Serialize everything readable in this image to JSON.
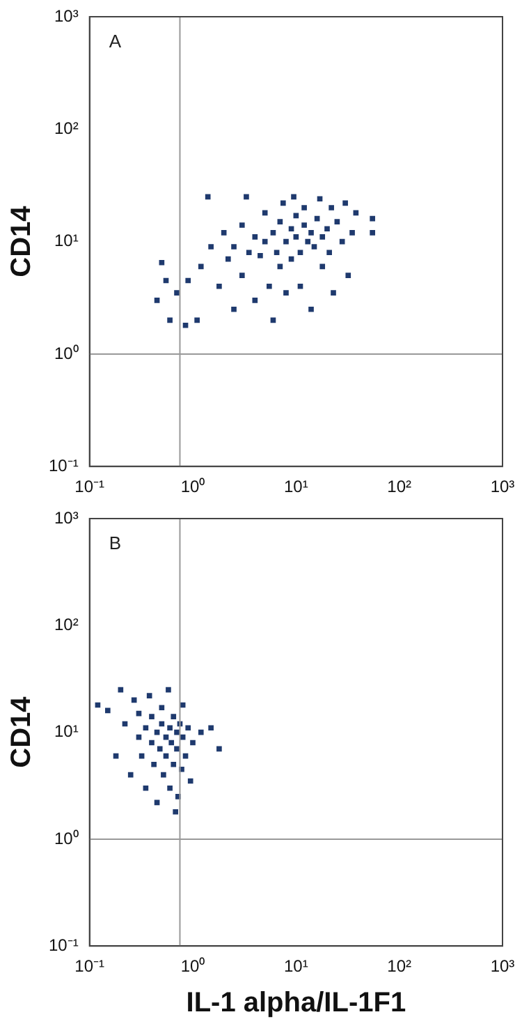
{
  "chart_data": [
    {
      "type": "scatter",
      "ylabel": "CD14",
      "annotations": [
        "A"
      ],
      "log": "xy",
      "marker": "square",
      "color": "#1f3a6e",
      "xlim": [
        0.1,
        1000
      ],
      "ylim": [
        0.1,
        1000
      ],
      "xticks": [
        {
          "value": 0.1,
          "label": "10⁻¹"
        },
        {
          "value": 1,
          "label": "10⁰"
        },
        {
          "value": 10,
          "label": "10¹"
        },
        {
          "value": 100,
          "label": "10²"
        },
        {
          "value": 1000,
          "label": "10³"
        }
      ],
      "yticks": [
        {
          "value": 0.1,
          "label": "10⁻¹"
        },
        {
          "value": 1,
          "label": "10⁰"
        },
        {
          "value": 10,
          "label": "10¹"
        },
        {
          "value": 100,
          "label": "10²"
        },
        {
          "value": 1000,
          "label": "10³"
        }
      ],
      "ref_lines": [
        {
          "axis": "x",
          "value": 0.75,
          "color": "#999999"
        },
        {
          "axis": "y",
          "value": 1,
          "color": "#999999"
        }
      ],
      "x": [
        0.45,
        0.5,
        0.55,
        0.6,
        0.7,
        0.85,
        0.9,
        1.1,
        1.2,
        1.4,
        1.5,
        1.8,
        2,
        2.2,
        2.5,
        2.5,
        3,
        3,
        3.3,
        3.5,
        4,
        4,
        4.5,
        5,
        5,
        5.5,
        6,
        6,
        6.5,
        7,
        7,
        7.5,
        8,
        8,
        9,
        9,
        9.5,
        10,
        10,
        11,
        11,
        12,
        12,
        13,
        14,
        14,
        15,
        16,
        17,
        18,
        18,
        20,
        21,
        22,
        23,
        25,
        28,
        30,
        32,
        35,
        38,
        55,
        55
      ],
      "values": [
        3,
        6.5,
        4.5,
        2,
        3.5,
        1.8,
        4.5,
        2,
        6,
        25,
        9,
        4,
        12,
        7,
        2.5,
        9,
        14,
        5,
        25,
        8,
        11,
        3,
        7.5,
        18,
        10,
        4,
        12,
        2,
        8,
        15,
        6,
        22,
        10,
        3.5,
        13,
        7,
        25,
        11,
        17,
        8,
        4,
        14,
        20,
        10,
        12,
        2.5,
        9,
        16,
        24,
        11,
        6,
        13,
        8,
        20,
        3.5,
        15,
        10,
        22,
        5,
        12,
        18,
        16,
        12
      ]
    },
    {
      "type": "scatter",
      "ylabel": "CD14",
      "xlabel": "IL-1 alpha/IL-1F1",
      "annotations": [
        "B"
      ],
      "log": "xy",
      "marker": "square",
      "color": "#1f3a6e",
      "xlim": [
        0.1,
        1000
      ],
      "ylim": [
        0.1,
        1000
      ],
      "xticks": [
        {
          "value": 0.1,
          "label": "10⁻¹"
        },
        {
          "value": 1,
          "label": "10⁰"
        },
        {
          "value": 10,
          "label": "10¹"
        },
        {
          "value": 100,
          "label": "10²"
        },
        {
          "value": 1000,
          "label": "10³"
        }
      ],
      "yticks": [
        {
          "value": 0.1,
          "label": "10⁻¹"
        },
        {
          "value": 1,
          "label": "10⁰"
        },
        {
          "value": 10,
          "label": "10¹"
        },
        {
          "value": 100,
          "label": "10²"
        },
        {
          "value": 1000,
          "label": "10³"
        }
      ],
      "ref_lines": [
        {
          "axis": "x",
          "value": 0.75,
          "color": "#999999"
        },
        {
          "axis": "y",
          "value": 1,
          "color": "#999999"
        }
      ],
      "x": [
        0.12,
        0.15,
        0.18,
        0.2,
        0.22,
        0.25,
        0.27,
        0.3,
        0.3,
        0.32,
        0.35,
        0.35,
        0.38,
        0.4,
        0.4,
        0.42,
        0.45,
        0.45,
        0.48,
        0.5,
        0.5,
        0.52,
        0.55,
        0.55,
        0.58,
        0.6,
        0.6,
        0.62,
        0.65,
        0.65,
        0.68,
        0.7,
        0.7,
        0.72,
        0.75,
        0.78,
        0.8,
        0.8,
        0.85,
        0.9,
        0.95,
        1,
        1.2,
        1.5,
        1.8
      ],
      "values": [
        18,
        16,
        6,
        25,
        12,
        4,
        20,
        9,
        15,
        6,
        11,
        3,
        22,
        8,
        14,
        5,
        10,
        2.2,
        7,
        12,
        17,
        4,
        9,
        6,
        25,
        11,
        3,
        8,
        14,
        5,
        1.8,
        10,
        7,
        2.5,
        12,
        4.5,
        9,
        18,
        6,
        11,
        3.5,
        8,
        10,
        11,
        7
      ]
    }
  ]
}
